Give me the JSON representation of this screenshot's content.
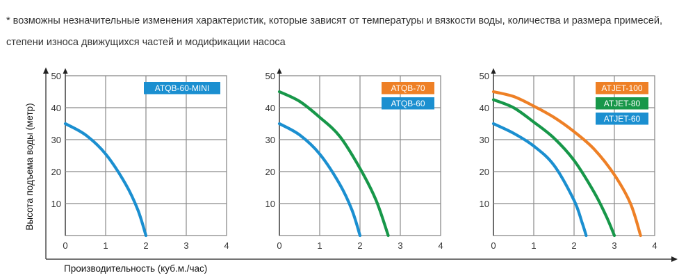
{
  "note": "* возможны незначительные изменения характеристик, которые зависят от температуры и вязкости воды, количества и размера примесей, степени износа движущихся частей и модификации насоса",
  "y_axis_label": "Высота подъема воды (метр)",
  "x_axis_label": "Производительность (куб.м./час)",
  "colors": {
    "blue": "#1b8fd0",
    "green": "#179749",
    "orange": "#ee8026",
    "grid": "#8a8a8a"
  },
  "chart_data": [
    {
      "type": "line",
      "xlim": [
        0,
        4
      ],
      "ylim": [
        0,
        50
      ],
      "x_ticks": [
        "0",
        "1",
        "2",
        "3",
        "4"
      ],
      "y_ticks": [
        "10",
        "20",
        "30",
        "40",
        "50"
      ],
      "grid": true,
      "legend_position": "top-right",
      "series": [
        {
          "name": "ATQB-60-MINI",
          "color": "#1b8fd0",
          "x": [
            0,
            0.5,
            1.0,
            1.5,
            1.8,
            2.0
          ],
          "y": [
            35,
            31.5,
            25.5,
            16,
            8,
            0
          ]
        }
      ]
    },
    {
      "type": "line",
      "xlim": [
        0,
        4
      ],
      "ylim": [
        0,
        50
      ],
      "x_ticks": [
        "0",
        "1",
        "2",
        "3",
        "4"
      ],
      "y_ticks": [
        "10",
        "20",
        "30",
        "40",
        "50"
      ],
      "grid": true,
      "legend_position": "top-right",
      "series": [
        {
          "name": "ATQB-70",
          "color": "#ee8026",
          "x": [],
          "y": []
        },
        {
          "name": "ATQB-60",
          "color": "#1b8fd0",
          "x": [
            0,
            0.5,
            1.0,
            1.5,
            1.8,
            2.0
          ],
          "y": [
            35,
            31.5,
            25.5,
            16,
            8,
            0
          ]
        },
        {
          "name": "",
          "color": "#179749",
          "x": [
            0,
            0.5,
            1.0,
            1.5,
            2.0,
            2.4,
            2.7
          ],
          "y": [
            45,
            42,
            37,
            31,
            21,
            11,
            0
          ]
        }
      ]
    },
    {
      "type": "line",
      "xlim": [
        0,
        4
      ],
      "ylim": [
        0,
        50
      ],
      "x_ticks": [
        "0",
        "1",
        "2",
        "3",
        "4"
      ],
      "y_ticks": [
        "10",
        "20",
        "30",
        "40",
        "50"
      ],
      "grid": true,
      "legend_position": "top-right",
      "series": [
        {
          "name": "ATJET-100",
          "color": "#ee8026",
          "x": [
            0,
            0.5,
            1.0,
            1.5,
            2.0,
            2.5,
            3.0,
            3.4,
            3.65
          ],
          "y": [
            45,
            43.5,
            40.5,
            37,
            32.5,
            27,
            19,
            10,
            0
          ]
        },
        {
          "name": "ATJET-80",
          "color": "#179749",
          "x": [
            0,
            0.5,
            1.0,
            1.5,
            2.0,
            2.5,
            2.8,
            3.0
          ],
          "y": [
            42.5,
            40,
            35.5,
            30.5,
            23.5,
            13.5,
            6,
            0
          ]
        },
        {
          "name": "ATJET-60",
          "color": "#1b8fd0",
          "x": [
            0,
            0.5,
            1.0,
            1.5,
            2.0,
            2.2,
            2.3
          ],
          "y": [
            35,
            32,
            28,
            22,
            11,
            4,
            0
          ]
        }
      ]
    }
  ]
}
